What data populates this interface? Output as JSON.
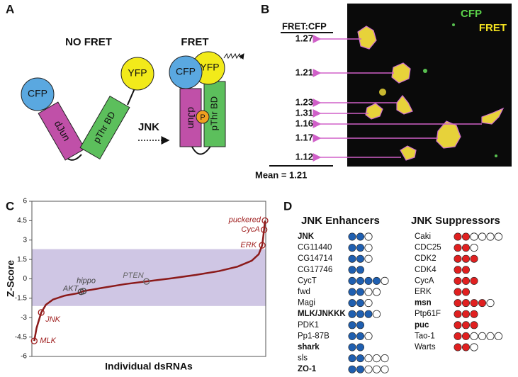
{
  "panel_a": {
    "label": "A",
    "no_fret": "NO FRET",
    "fret": "FRET",
    "cfp_1": "CFP",
    "yfp_1": "YFP",
    "djun_1": "dJun",
    "pthr_1": "pThr BD",
    "cfp_2": "CFP",
    "yfp_2": "YFP",
    "djun_2": "dJun",
    "pthr_2": "pThr BD",
    "jnk": "JNK",
    "p": "P"
  },
  "panel_b": {
    "label": "B",
    "header": "FRET:CFP",
    "ratios": [
      1.27,
      1.21,
      1.23,
      1.31,
      1.16,
      1.17,
      1.12
    ],
    "mean": "Mean = 1.21",
    "legend_cfp": "CFP",
    "legend_fret": "FRET"
  },
  "chart_data": {
    "type": "line",
    "label": "C",
    "ylabel": "Z-Score",
    "xlabel": "Individual dsRNAs",
    "color": "#8b1a1a",
    "xlim": [
      0,
      100
    ],
    "ylim": [
      -6,
      6
    ],
    "yticks": [
      6,
      4.5,
      3,
      1.5,
      0,
      -1.5,
      -3,
      -4.5,
      -6
    ],
    "band": [
      -2.1,
      2.3
    ],
    "band_color": "#cfc6e4",
    "x": [
      1,
      2,
      4,
      6,
      9,
      14,
      20,
      22,
      30,
      40,
      49,
      60,
      70,
      80,
      88,
      94,
      97,
      98.5,
      99.3,
      99.7
    ],
    "values": [
      -4.8,
      -3.8,
      -2.6,
      -2.0,
      -1.6,
      -1.3,
      -1.1,
      -0.95,
      -0.7,
      -0.4,
      -0.2,
      0.05,
      0.3,
      0.6,
      0.95,
      1.4,
      1.9,
      2.6,
      3.8,
      4.5
    ],
    "annotations": [
      {
        "label": "puckered",
        "x": 99.7,
        "y": 4.5,
        "color": "#a02020"
      },
      {
        "label": "CycA",
        "x": 99.3,
        "y": 3.8,
        "color": "#a02020"
      },
      {
        "label": "ERK",
        "x": 98.5,
        "y": 2.6,
        "color": "#a02020"
      },
      {
        "label": "PTEN",
        "x": 49,
        "y": -0.2,
        "color": "#666666"
      },
      {
        "label": "hippo",
        "x": 22,
        "y": -0.95,
        "color": "#444444"
      },
      {
        "label": "AKT",
        "x": 21,
        "y": -1.0,
        "color": "#444444"
      },
      {
        "label": "JNK",
        "x": 4,
        "y": -2.6,
        "color": "#a02020"
      },
      {
        "label": "MLK",
        "x": 1,
        "y": -4.8,
        "color": "#a02020"
      }
    ]
  },
  "panel_d": {
    "label": "D",
    "enhancers": {
      "title": "JNK Enhancers",
      "color": "#1f5fb0",
      "rows": [
        {
          "name": "JNK",
          "filled": 2,
          "empty": 1,
          "bold": true
        },
        {
          "name": "CG11440",
          "filled": 2,
          "empty": 1,
          "bold": false
        },
        {
          "name": "CG14714",
          "filled": 2,
          "empty": 1,
          "bold": false
        },
        {
          "name": "CG17746",
          "filled": 2,
          "empty": 0,
          "bold": false
        },
        {
          "name": "CycT",
          "filled": 4,
          "empty": 1,
          "bold": false
        },
        {
          "name": "fwd",
          "filled": 2,
          "empty": 2,
          "bold": false
        },
        {
          "name": "Magi",
          "filled": 2,
          "empty": 1,
          "bold": false
        },
        {
          "name": "MLK/JNKKK",
          "filled": 3,
          "empty": 1,
          "bold": true
        },
        {
          "name": "PDK1",
          "filled": 2,
          "empty": 0,
          "bold": false
        },
        {
          "name": "Pp1-87B",
          "filled": 2,
          "empty": 1,
          "bold": false
        },
        {
          "name": "shark",
          "filled": 2,
          "empty": 0,
          "bold": true
        },
        {
          "name": "sls",
          "filled": 2,
          "empty": 3,
          "bold": false
        },
        {
          "name": "ZO-1",
          "filled": 2,
          "empty": 3,
          "bold": true
        }
      ]
    },
    "suppressors": {
      "title": "JNK Suppressors",
      "color": "#e02020",
      "rows": [
        {
          "name": "Caki",
          "filled": 2,
          "empty": 4,
          "bold": false
        },
        {
          "name": "CDC25",
          "filled": 2,
          "empty": 1,
          "bold": false
        },
        {
          "name": "CDK2",
          "filled": 3,
          "empty": 0,
          "bold": false
        },
        {
          "name": "CDK4",
          "filled": 2,
          "empty": 0,
          "bold": false
        },
        {
          "name": "CycA",
          "filled": 3,
          "empty": 0,
          "bold": false
        },
        {
          "name": "ERK",
          "filled": 2,
          "empty": 0,
          "bold": false
        },
        {
          "name": "msn",
          "filled": 4,
          "empty": 1,
          "bold": true
        },
        {
          "name": "Ptp61F",
          "filled": 3,
          "empty": 0,
          "bold": false
        },
        {
          "name": "puc",
          "filled": 3,
          "empty": 0,
          "bold": true
        },
        {
          "name": "Tao-1",
          "filled": 2,
          "empty": 4,
          "bold": false
        },
        {
          "name": "Warts",
          "filled": 2,
          "empty": 1,
          "bold": false
        }
      ]
    }
  }
}
